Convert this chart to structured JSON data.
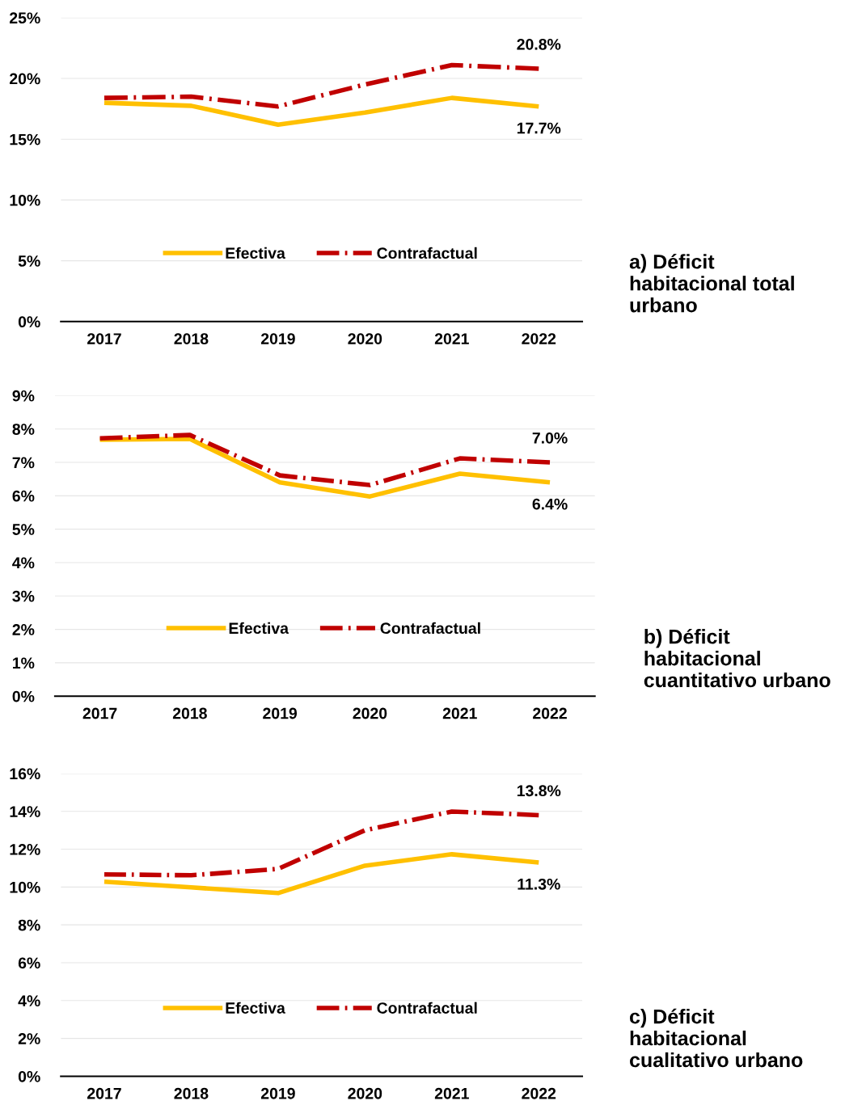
{
  "chart_data": [
    {
      "type": "line",
      "annotations": [
        "a) Déficit habitacional total urbano"
      ],
      "categories": [
        "2017",
        "2018",
        "2019",
        "2020",
        "2021",
        "2022"
      ],
      "ylim": [
        0,
        25
      ],
      "yticks": [
        {
          "value": 0,
          "label": "0%"
        },
        {
          "value": 5,
          "label": "5%"
        },
        {
          "value": 10,
          "label": "10%"
        },
        {
          "value": 15,
          "label": "15%"
        },
        {
          "value": 20,
          "label": "20%"
        },
        {
          "value": 25,
          "label": "25%"
        }
      ],
      "grid": "y",
      "legend": "bottom",
      "marker": "none",
      "series": [
        {
          "name": "Efectiva",
          "color": "#ffc000",
          "line_style": "solid",
          "values": [
            18.0,
            17.75,
            16.2,
            17.2,
            18.4,
            17.7
          ],
          "value_labels": [
            null,
            null,
            null,
            null,
            null,
            "17.7%"
          ]
        },
        {
          "name": "Contrafactual",
          "color": "#c00000",
          "line_style": "dashdot",
          "values": [
            18.4,
            18.5,
            17.7,
            19.5,
            21.1,
            20.8
          ],
          "value_labels": [
            null,
            null,
            null,
            null,
            null,
            "20.8%"
          ]
        }
      ]
    },
    {
      "type": "line",
      "annotations": [
        "b) Déficit habitacional cuantitativo urbano"
      ],
      "categories": [
        "2017",
        "2018",
        "2019",
        "2020",
        "2021",
        "2022"
      ],
      "ylim": [
        0,
        9
      ],
      "yticks": [
        {
          "value": 0,
          "label": "0%"
        },
        {
          "value": 1,
          "label": "1%"
        },
        {
          "value": 2,
          "label": "2%"
        },
        {
          "value": 3,
          "label": "3%"
        },
        {
          "value": 4,
          "label": "4%"
        },
        {
          "value": 5,
          "label": "5%"
        },
        {
          "value": 6,
          "label": "6%"
        },
        {
          "value": 7,
          "label": "7%"
        },
        {
          "value": 8,
          "label": "8%"
        },
        {
          "value": 9,
          "label": "9%"
        }
      ],
      "grid": "y",
      "legend": "bottom",
      "marker": "none",
      "series": [
        {
          "name": "Efectiva",
          "color": "#ffc000",
          "line_style": "solid",
          "values": [
            7.68,
            7.7,
            6.4,
            5.98,
            6.66,
            6.4
          ],
          "value_labels": [
            null,
            null,
            null,
            null,
            null,
            "6.4%"
          ]
        },
        {
          "name": "Contrafactual",
          "color": "#c00000",
          "line_style": "dashdot",
          "values": [
            7.72,
            7.82,
            6.61,
            6.32,
            7.12,
            7.0
          ],
          "value_labels": [
            null,
            null,
            null,
            null,
            null,
            "7.0%"
          ]
        }
      ]
    },
    {
      "type": "line",
      "annotations": [
        "c) Déficit habitacional cualitativo urbano"
      ],
      "categories": [
        "2017",
        "2018",
        "2019",
        "2020",
        "2021",
        "2022"
      ],
      "ylim": [
        0,
        16
      ],
      "yticks": [
        {
          "value": 0,
          "label": "0%"
        },
        {
          "value": 2,
          "label": "2%"
        },
        {
          "value": 4,
          "label": "4%"
        },
        {
          "value": 6,
          "label": "6%"
        },
        {
          "value": 8,
          "label": "8%"
        },
        {
          "value": 10,
          "label": "10%"
        },
        {
          "value": 12,
          "label": "12%"
        },
        {
          "value": 14,
          "label": "14%"
        },
        {
          "value": 16,
          "label": "16%"
        }
      ],
      "grid": "y",
      "legend": "bottom",
      "marker": "none",
      "series": [
        {
          "name": "Efectiva",
          "color": "#ffc000",
          "line_style": "solid",
          "values": [
            10.28,
            9.98,
            9.68,
            11.13,
            11.73,
            11.3
          ],
          "value_labels": [
            null,
            null,
            null,
            null,
            null,
            "11.3%"
          ]
        },
        {
          "name": "Contrafactual",
          "color": "#c00000",
          "line_style": "dashdot",
          "values": [
            10.67,
            10.62,
            10.96,
            13.0,
            13.99,
            13.8
          ],
          "value_labels": [
            null,
            null,
            null,
            null,
            null,
            "13.8%"
          ]
        }
      ]
    }
  ]
}
